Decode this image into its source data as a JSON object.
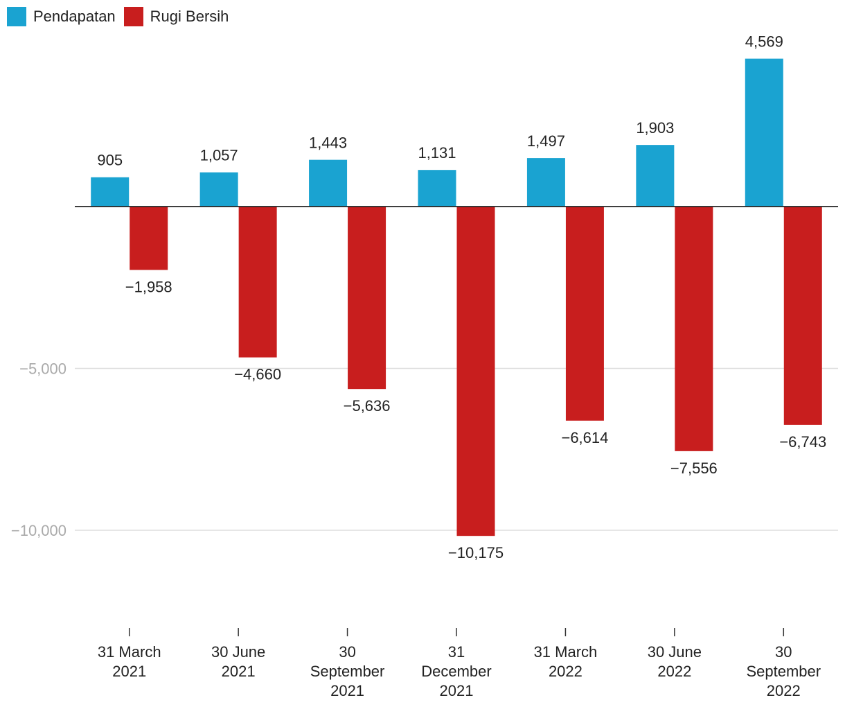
{
  "chart_data": {
    "type": "bar",
    "categories": [
      [
        "31 March",
        "2021"
      ],
      [
        "30 June",
        "2021"
      ],
      [
        "30",
        "September",
        "2021"
      ],
      [
        "31",
        "December",
        "2021"
      ],
      [
        "31 March",
        "2022"
      ],
      [
        "30 June",
        "2022"
      ],
      [
        "30",
        "September",
        "2022"
      ]
    ],
    "series": [
      {
        "name": "Pendapatan",
        "color": "#1aa3d1",
        "values": [
          905,
          1057,
          1443,
          1131,
          1497,
          1903,
          4569
        ],
        "labels": [
          "905",
          "1,057",
          "1,443",
          "1,131",
          "1,497",
          "1,903",
          "4,569"
        ]
      },
      {
        "name": "Rugi Bersih",
        "color": "#c81e1e",
        "values": [
          -1958,
          -4660,
          -5636,
          -10175,
          -6614,
          -7556,
          -6743
        ],
        "labels": [
          "−1,958",
          "−4,660",
          "−5,636",
          "−10,175",
          "−6,614",
          "−7,556",
          "−6,743"
        ]
      }
    ],
    "yticks": [
      {
        "value": -5000,
        "label": "−5,000"
      },
      {
        "value": -10000,
        "label": "−10,000"
      }
    ],
    "ylim": [
      -12000,
      5000
    ],
    "grid": true,
    "legend": "top-left",
    "title": "",
    "xlabel": "",
    "ylabel": ""
  }
}
